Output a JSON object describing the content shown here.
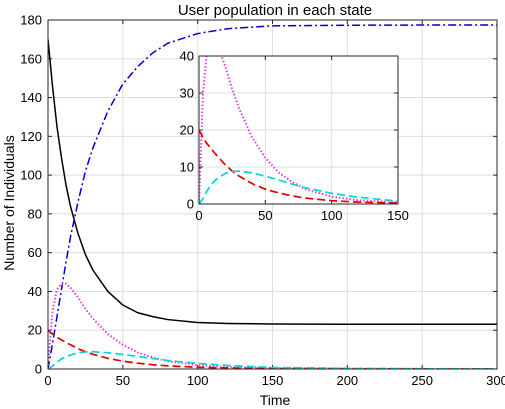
{
  "chart_data": [
    {
      "type": "line",
      "title": "User population in each state",
      "xlabel": "Time",
      "ylabel": "Number of Individuals",
      "xlim": [
        0,
        300
      ],
      "ylim": [
        0,
        180
      ],
      "xticks": [
        0,
        50,
        100,
        150,
        200,
        250,
        300
      ],
      "yticks": [
        0,
        20,
        40,
        60,
        80,
        100,
        120,
        140,
        160,
        180
      ],
      "grid": true,
      "x": [
        0,
        3,
        6,
        9,
        12,
        15,
        20,
        25,
        30,
        40,
        50,
        60,
        70,
        80,
        100,
        120,
        150,
        200,
        250,
        300
      ],
      "series": [
        {
          "color": "#000000",
          "style": "solid",
          "values": [
            170,
            146,
            125,
            109,
            95,
            84,
            70,
            59,
            51,
            40,
            33,
            29,
            27,
            25.5,
            24,
            23.5,
            23.2,
            23.1,
            23.1,
            23.1
          ]
        },
        {
          "color": "#0000cc",
          "style": "dashdot",
          "values": [
            0,
            13,
            27,
            41,
            55,
            68,
            86,
            102,
            114,
            133,
            147,
            156,
            163,
            168,
            173,
            175.5,
            177,
            177.3,
            177.4,
            177.4
          ]
        },
        {
          "color": "#e040e0",
          "style": "dotted",
          "values": [
            0,
            30,
            41,
            44,
            44,
            42,
            37,
            31,
            26,
            18,
            12.5,
            8.5,
            6,
            4,
            2,
            1,
            0.5,
            0.2,
            0.1,
            0
          ]
        },
        {
          "color": "#e00000",
          "style": "dashed",
          "values": [
            20,
            18,
            16.3,
            15,
            13.7,
            12.5,
            10.5,
            8.9,
            7.6,
            5.5,
            4,
            3,
            2.2,
            1.6,
            0.9,
            0.5,
            0.25,
            0.1,
            0.05,
            0
          ]
        },
        {
          "color": "#00d6d6",
          "style": "dashed",
          "values": [
            0,
            1.5,
            3.5,
            5.2,
            6.3,
            7.2,
            8.3,
            8.8,
            8.9,
            8.4,
            7.5,
            6.5,
            5.4,
            4.4,
            2.9,
            1.8,
            0.8,
            0.3,
            0.1,
            0
          ]
        }
      ]
    },
    {
      "type": "line",
      "title": "",
      "xlim": [
        0,
        150
      ],
      "ylim": [
        0,
        40
      ],
      "xticks": [
        0,
        50,
        100,
        150
      ],
      "yticks": [
        0,
        10,
        20,
        30,
        40
      ],
      "grid": true,
      "x": [
        0,
        3,
        6,
        9,
        12,
        15,
        20,
        25,
        30,
        40,
        50,
        60,
        70,
        80,
        100,
        120,
        150
      ],
      "series": [
        {
          "color": "#e040e0",
          "style": "dotted",
          "values": [
            0,
            30,
            41,
            44,
            44,
            42,
            37,
            31,
            26,
            18,
            12.5,
            8.5,
            6,
            4,
            2,
            1,
            0.5
          ]
        },
        {
          "color": "#e00000",
          "style": "dashed",
          "values": [
            20,
            18,
            16.3,
            15,
            13.7,
            12.5,
            10.5,
            8.9,
            7.6,
            5.5,
            4,
            3,
            2.2,
            1.6,
            0.9,
            0.5,
            0.25
          ]
        },
        {
          "color": "#00d6d6",
          "style": "dashed",
          "values": [
            0,
            1.5,
            3.5,
            5.2,
            6.3,
            7.2,
            8.3,
            8.8,
            8.9,
            8.4,
            7.5,
            6.5,
            5.4,
            4.4,
            2.9,
            1.8,
            0.8
          ]
        }
      ]
    }
  ]
}
